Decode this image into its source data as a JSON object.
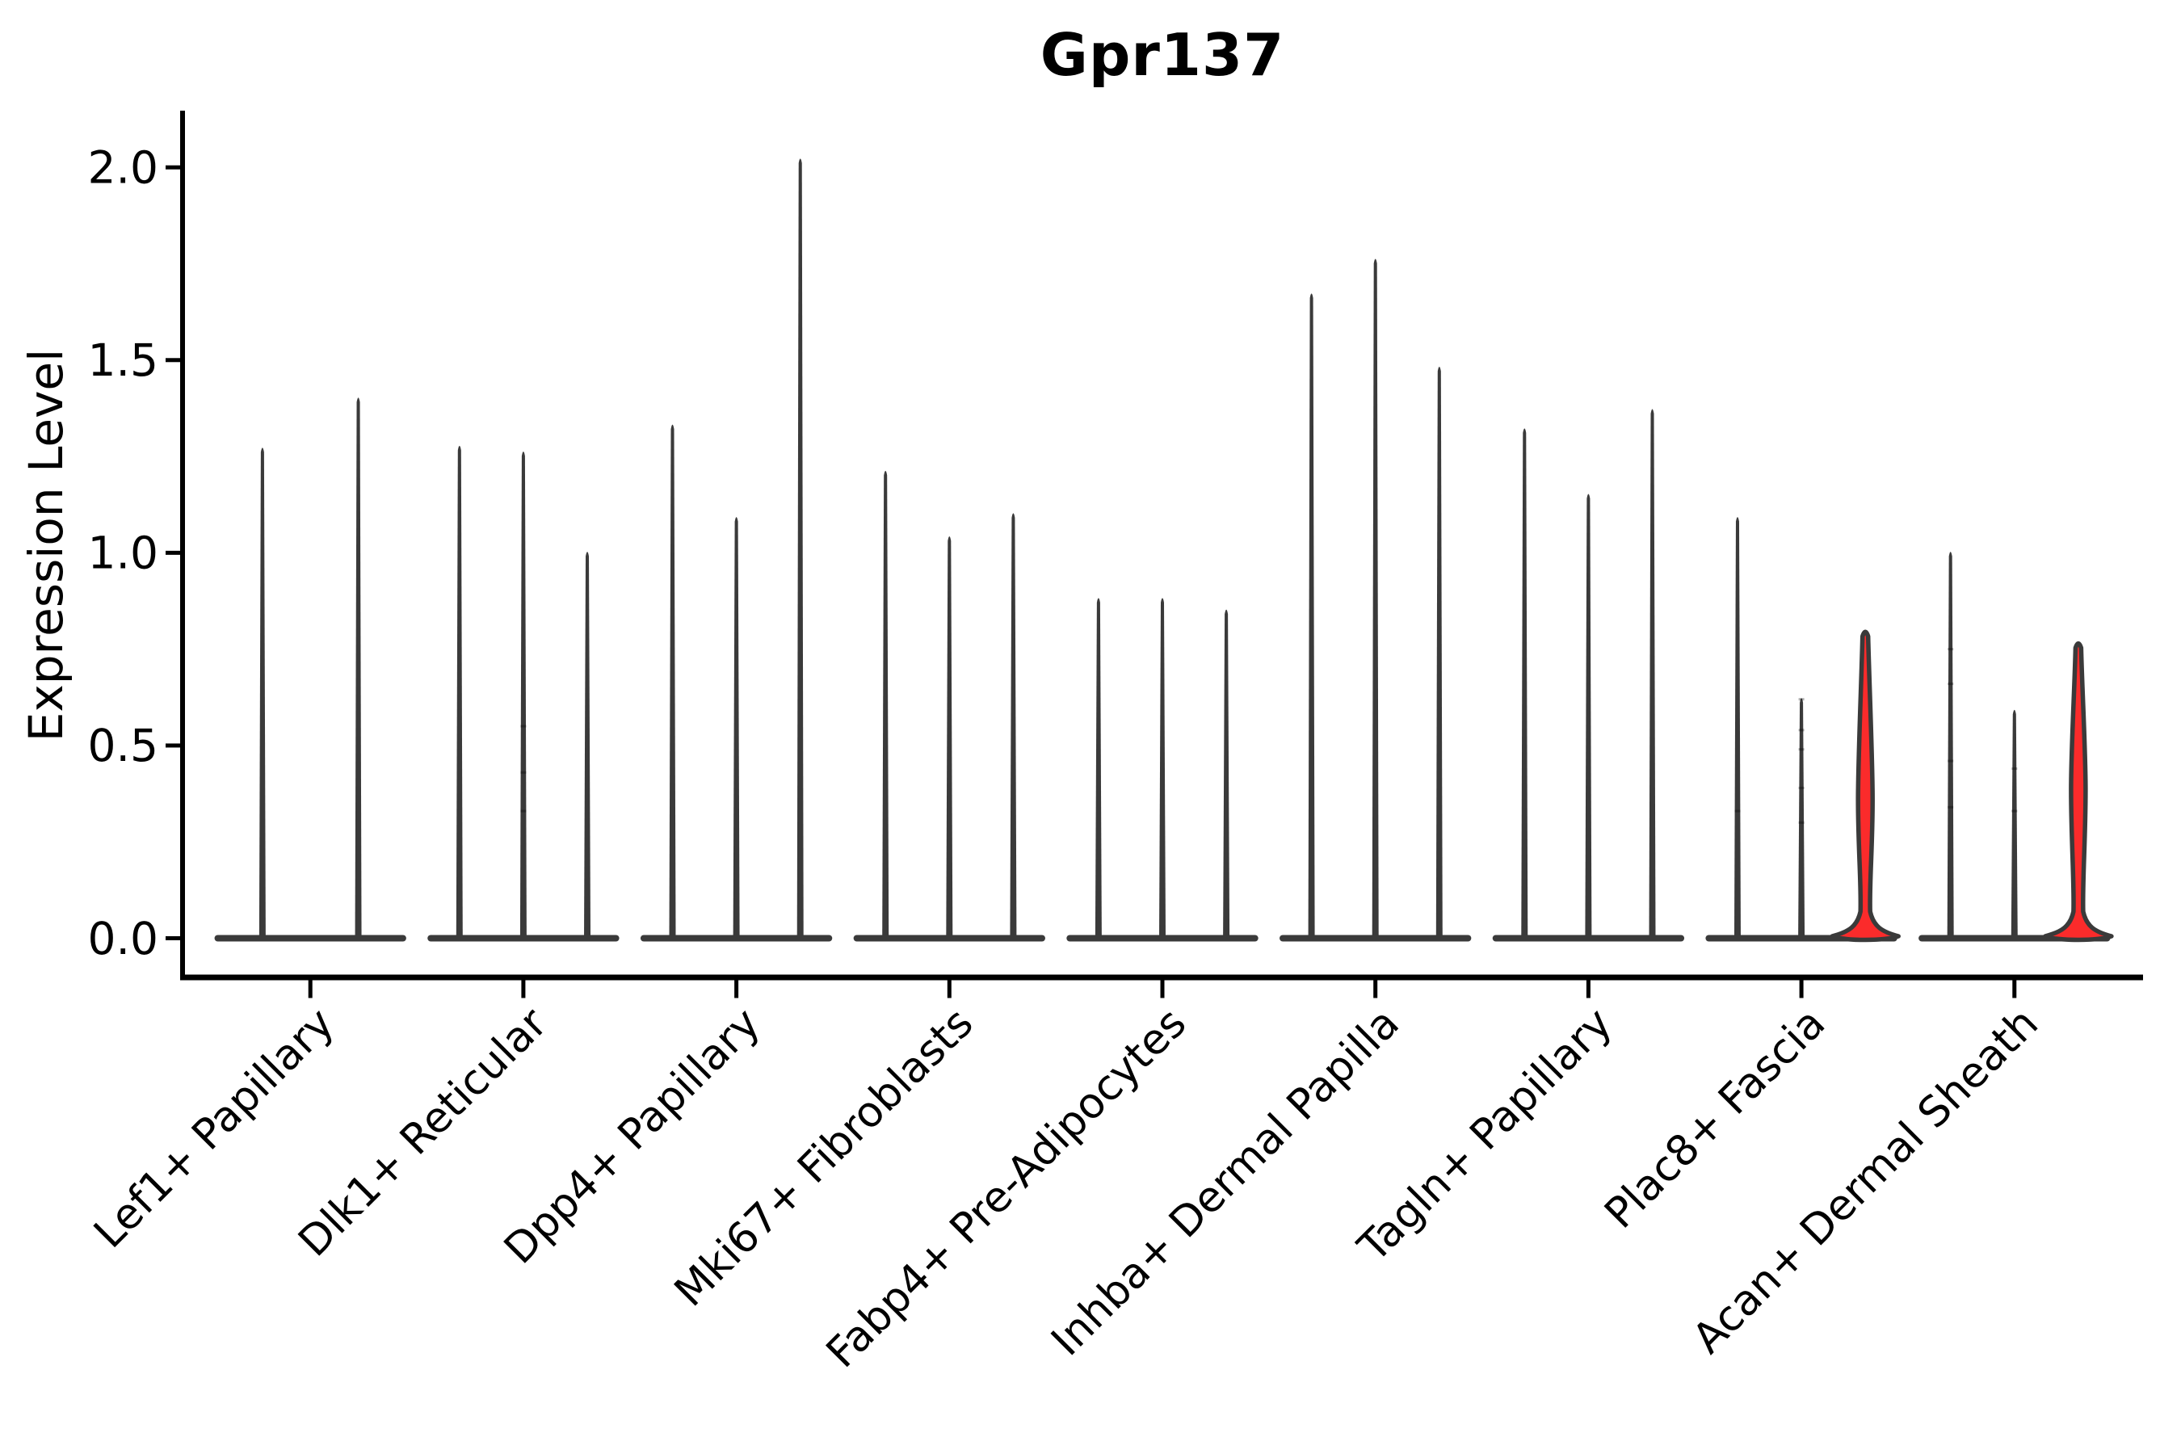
{
  "title": "Gpr137",
  "ylabel": "Expression Level",
  "chart_data": {
    "type": "violin",
    "title": "Gpr137",
    "xlabel": "",
    "ylabel": "Expression Level",
    "ylim": [
      -0.1,
      2.15
    ],
    "ytick_labels": [
      "0.0",
      "0.5",
      "1.0",
      "1.5",
      "2.0"
    ],
    "ytick_values": [
      0.0,
      0.5,
      1.0,
      1.5,
      2.0
    ],
    "grid": false,
    "legend": "none",
    "colors": {
      "violin_outline": "#3a3a3a",
      "violin_fill_highlight": "#fb2b2b",
      "axis": "#000000",
      "text": "#000000",
      "background": "#ffffff"
    },
    "categories": [
      "Lef1+ Papillary",
      "Dlk1+ Reticular",
      "Dpp4+ Papillary",
      "Mki67+ Fibroblasts",
      "Fabp4+ Pre-Adipocytes",
      "Inhba+ Dermal Papilla",
      "Tagln+ Papillary",
      "Plac8+ Fascia",
      "Acan+ Dermal Sheath"
    ],
    "groups": [
      {
        "category": "Lef1+ Papillary",
        "violins": [
          {
            "pos": -0.225,
            "max": 1.28,
            "fill": "dark"
          },
          {
            "pos": 0.225,
            "max": 1.41,
            "fill": "dark"
          }
        ]
      },
      {
        "category": "Dlk1+ Reticular",
        "violins": [
          {
            "pos": -0.3,
            "max": 1.285,
            "fill": "dark"
          },
          {
            "pos": 0.0,
            "max": 1.27,
            "fill": "dark",
            "dots": [
              0.55,
              0.43,
              0.33
            ]
          },
          {
            "pos": 0.3,
            "max": 1.01,
            "fill": "dark"
          }
        ]
      },
      {
        "category": "Dpp4+ Papillary",
        "violins": [
          {
            "pos": -0.3,
            "max": 1.34,
            "fill": "dark"
          },
          {
            "pos": 0.0,
            "max": 1.1,
            "fill": "dark"
          },
          {
            "pos": 0.3,
            "max": 2.03,
            "fill": "dark"
          }
        ]
      },
      {
        "category": "Mki67+ Fibroblasts",
        "violins": [
          {
            "pos": -0.3,
            "max": 1.22,
            "fill": "dark"
          },
          {
            "pos": 0.0,
            "max": 1.05,
            "fill": "dark"
          },
          {
            "pos": 0.3,
            "max": 1.11,
            "fill": "dark"
          }
        ]
      },
      {
        "category": "Fabp4+ Pre-Adipocytes",
        "violins": [
          {
            "pos": -0.3,
            "max": 0.89,
            "fill": "dark"
          },
          {
            "pos": 0.0,
            "max": 0.89,
            "fill": "dark"
          },
          {
            "pos": 0.3,
            "max": 0.86,
            "fill": "dark"
          }
        ]
      },
      {
        "category": "Inhba+ Dermal Papilla",
        "violins": [
          {
            "pos": -0.3,
            "max": 1.68,
            "fill": "dark"
          },
          {
            "pos": 0.0,
            "max": 1.77,
            "fill": "dark"
          },
          {
            "pos": 0.3,
            "max": 1.49,
            "fill": "dark"
          }
        ]
      },
      {
        "category": "Tagln+ Papillary",
        "violins": [
          {
            "pos": -0.3,
            "max": 1.33,
            "fill": "dark"
          },
          {
            "pos": 0.0,
            "max": 1.16,
            "fill": "dark"
          },
          {
            "pos": 0.3,
            "max": 1.38,
            "fill": "dark"
          }
        ]
      },
      {
        "category": "Plac8+ Fascia",
        "violins": [
          {
            "pos": -0.3,
            "max": 1.1,
            "fill": "dark",
            "dots": [
              0.33
            ]
          },
          {
            "pos": 0.0,
            "max": 0.63,
            "fill": "dark",
            "dots": [
              0.62,
              0.54,
              0.49,
              0.39,
              0.3
            ]
          },
          {
            "pos": 0.3,
            "max": 0.8,
            "fill": "red",
            "bulge": [
              0.22,
              0.5
            ]
          }
        ]
      },
      {
        "category": "Acan+ Dermal Sheath",
        "violins": [
          {
            "pos": -0.3,
            "max": 1.01,
            "fill": "dark",
            "dots": [
              0.75,
              0.66,
              0.46,
              0.34
            ]
          },
          {
            "pos": 0.0,
            "max": 0.6,
            "fill": "dark",
            "dots": [
              0.44,
              0.33
            ]
          },
          {
            "pos": 0.3,
            "max": 0.77,
            "fill": "red",
            "bulge": [
              0.25,
              0.52
            ]
          }
        ]
      }
    ]
  }
}
